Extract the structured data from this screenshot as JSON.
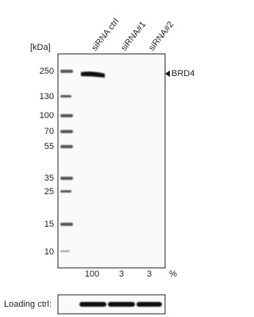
{
  "header": {
    "unit": "[kDa]",
    "lanes": [
      "siRNA ctrl",
      "siRNA#1",
      "siRNA#2"
    ]
  },
  "markers": [
    "250",
    "130",
    "100",
    "70",
    "55",
    "35",
    "25",
    "15",
    "10"
  ],
  "target": "BRD4",
  "footer": {
    "percentages": [
      "100",
      "3",
      "3"
    ],
    "unit": "%"
  },
  "loading": {
    "label": "Loading ctrl:"
  }
}
